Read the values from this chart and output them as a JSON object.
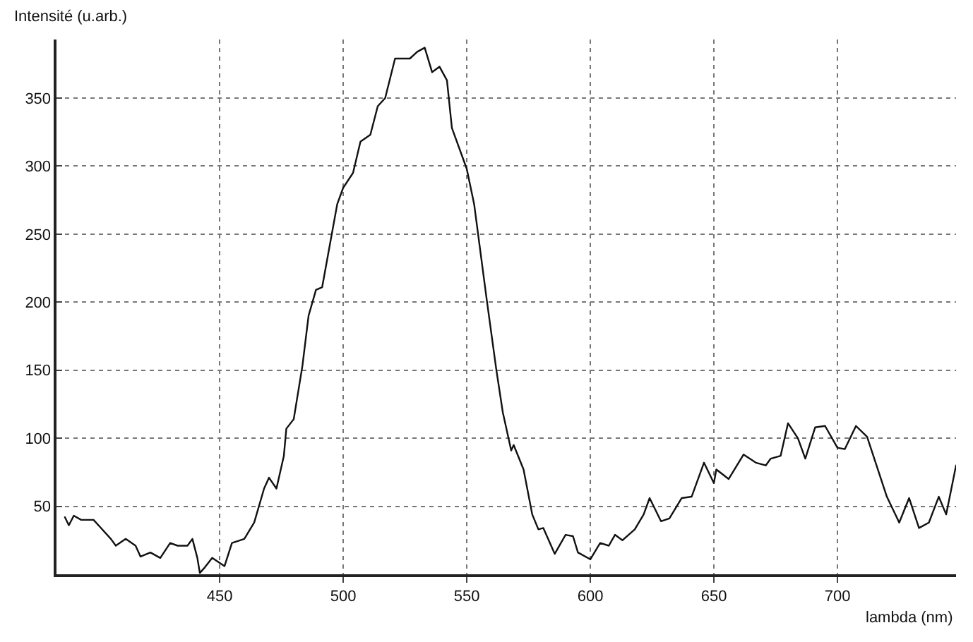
{
  "chart_data": {
    "type": "line",
    "xlabel": "lambda (nm)",
    "ylabel": "Intensité (u.arb.)",
    "x": [
      387.4,
      389,
      391,
      394,
      399,
      401.5,
      406,
      408,
      412,
      416,
      418,
      422,
      426,
      430,
      433,
      437,
      439,
      441,
      442,
      444,
      447,
      452,
      455,
      460,
      464,
      468,
      470,
      473,
      476,
      477,
      480,
      483.5,
      486,
      489,
      491.5,
      494,
      497.6,
      500,
      504,
      507,
      511,
      514,
      517,
      521,
      527,
      530,
      533,
      536,
      539,
      542,
      544,
      550,
      553,
      558,
      562,
      564.6,
      568,
      569,
      573,
      576.5,
      579,
      581,
      585.6,
      590,
      593,
      595,
      600,
      604,
      607.5,
      610,
      613,
      618,
      621.6,
      624,
      628.6,
      632,
      637,
      641,
      646,
      650,
      651,
      656,
      662,
      667,
      671,
      673,
      677,
      680,
      684,
      687,
      691,
      695,
      700,
      703,
      707.5,
      712,
      720,
      725,
      729,
      733,
      737,
      741,
      744,
      748
    ],
    "series": [
      {
        "color": "#111111",
        "values": [
          42,
          36,
          43,
          40,
          40,
          35,
          26,
          21,
          26,
          21,
          13,
          16,
          12,
          23,
          21,
          21,
          26,
          12,
          1,
          5,
          12,
          6,
          23,
          26,
          38,
          63,
          71,
          63,
          87,
          107,
          114,
          153,
          190,
          209,
          211,
          236,
          272,
          284,
          295,
          318,
          323,
          344,
          350,
          379,
          379,
          384,
          387,
          369,
          373,
          363,
          328,
          298,
          272,
          203,
          150,
          119,
          91,
          95,
          77,
          44,
          33,
          34,
          15,
          29,
          28,
          16,
          11,
          23,
          21,
          29,
          25,
          33,
          44,
          56,
          39,
          41,
          56,
          57,
          82,
          67,
          77,
          70,
          88,
          82,
          80,
          85,
          87,
          111,
          100,
          85,
          108,
          109,
          93,
          92,
          109,
          101,
          57,
          38,
          56,
          34,
          38,
          57,
          44,
          80
        ]
      }
    ],
    "xlim": [
      384,
      748
    ],
    "ylim": [
      0,
      393
    ],
    "xticks": [
      450,
      500,
      550,
      600,
      650,
      700
    ],
    "yticks": [
      50,
      100,
      150,
      200,
      250,
      300,
      350
    ],
    "grid": true,
    "marker": "none",
    "line_style": "solid"
  }
}
